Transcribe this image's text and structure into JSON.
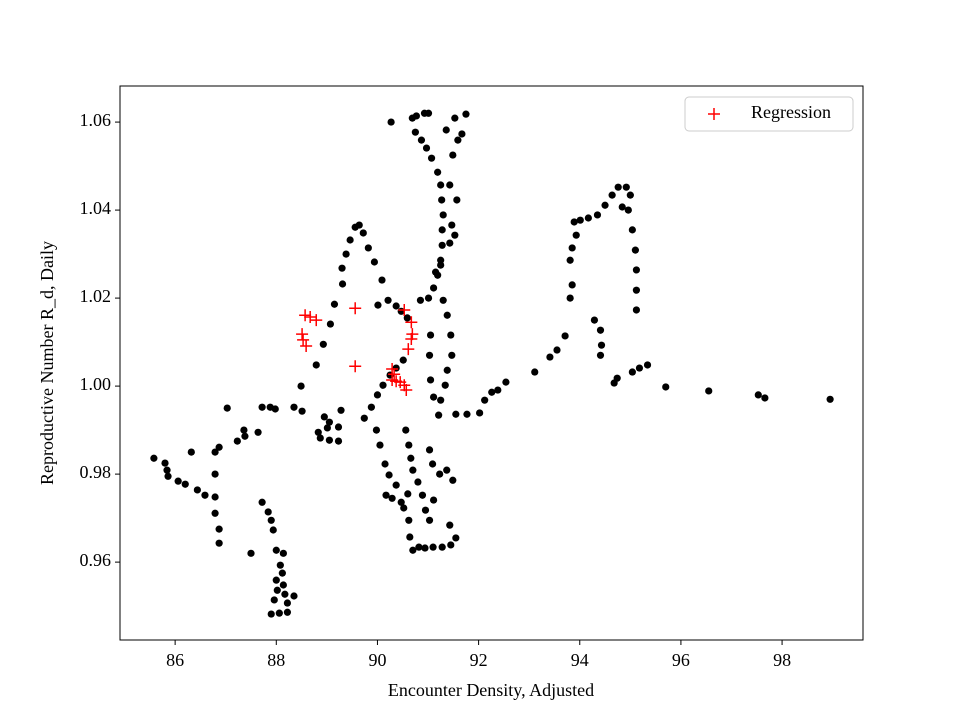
{
  "chart_data": {
    "type": "scatter",
    "xlabel": "Encounter Density, Adjusted",
    "ylabel": "Reproductive Number R_d, Daily",
    "xlim": [
      84.91,
      99.6
    ],
    "ylim": [
      0.9423,
      1.0682
    ],
    "xticks": [
      86,
      88,
      90,
      92,
      94,
      96,
      98
    ],
    "yticks": [
      0.96,
      0.98,
      {
        "value": 1,
        "label": "1.00"
      },
      1.02,
      1.04,
      1.06
    ],
    "legend": "upper right",
    "series": [
      {
        "color": "#000000",
        "marker": "o",
        "x": [
          85.58,
          85.8,
          85.84,
          85.86,
          86.06,
          86.2,
          86.32,
          86.44,
          86.59,
          86.79,
          86.79,
          86.79,
          86.87,
          86.87,
          86.79,
          86.87,
          87.03,
          87.23,
          87.36,
          87.38,
          87.64,
          87.72,
          87.88,
          87.98,
          87.5,
          87.72,
          87.84,
          87.9,
          87.94,
          88.0,
          88.14,
          88.08,
          88.12,
          88.0,
          88.14,
          88.02,
          88.17,
          87.96,
          88.22,
          87.9,
          88.06,
          88.22,
          88.35,
          88.35,
          88.51,
          88.49,
          88.79,
          88.95,
          88.93,
          89.01,
          88.83,
          88.87,
          89.05,
          89.23,
          89.23,
          89.28,
          89.05,
          89.15,
          89.07,
          89.31,
          89.3,
          89.38,
          89.46,
          89.56,
          89.64,
          89.72,
          89.82,
          89.94,
          90.09,
          90.01,
          90.21,
          90.37,
          90.47,
          90.59,
          89.74,
          89.88,
          90.0,
          90.11,
          90.25,
          90.37,
          90.51,
          89.98,
          90.05,
          90.15,
          90.23,
          90.17,
          90.29,
          90.37,
          90.47,
          90.52,
          90.6,
          90.62,
          90.64,
          90.7,
          90.82,
          90.94,
          91.1,
          91.28,
          91.45,
          91.55,
          91.43,
          90.56,
          90.62,
          90.66,
          90.7,
          90.8,
          90.89,
          90.95,
          91.03,
          91.11,
          91.03,
          91.09,
          91.23,
          91.37,
          91.49,
          90.27,
          90.69,
          90.77,
          90.93,
          91.01,
          90.75,
          90.87,
          90.97,
          91.07,
          91.19,
          91.25,
          91.27,
          91.3,
          91.28,
          91.28,
          91.25,
          91.19,
          91.11,
          91.01,
          90.85,
          91.3,
          91.38,
          91.45,
          91.47,
          91.38,
          91.34,
          91.25,
          91.21,
          91.55,
          91.11,
          91.05,
          91.03,
          91.05,
          91.43,
          91.53,
          91.47,
          91.57,
          91.43,
          91.49,
          91.59,
          91.67,
          91.53,
          91.75,
          91.36,
          91.25,
          91.15,
          91.77,
          92.02,
          92.12,
          92.26,
          92.38,
          92.54,
          93.11,
          93.41,
          93.55,
          93.71,
          93.81,
          93.85,
          93.81,
          93.85,
          93.93,
          93.89,
          94.01,
          94.17,
          94.35,
          94.5,
          94.64,
          94.76,
          94.92,
          95.0,
          94.96,
          94.84,
          95.04,
          95.1,
          95.12,
          95.12,
          95.12,
          94.29,
          94.41,
          94.43,
          94.41,
          94.68,
          94.74,
          95.04,
          95.18,
          95.34,
          95.7,
          96.55,
          97.53,
          97.66,
          98.95
        ],
        "values": [
          0.9836,
          0.9825,
          0.9809,
          0.9795,
          0.9784,
          0.9777,
          0.985,
          0.9764,
          0.9752,
          0.98,
          0.9748,
          0.9711,
          0.9675,
          0.9643,
          0.985,
          0.9861,
          0.995,
          0.9875,
          0.99,
          0.9886,
          0.9895,
          0.9952,
          0.9952,
          0.9948,
          0.962,
          0.9736,
          0.9714,
          0.9695,
          0.9673,
          0.9627,
          0.962,
          0.9593,
          0.9575,
          0.9559,
          0.9548,
          0.9536,
          0.9527,
          0.9514,
          0.9507,
          0.9482,
          0.9484,
          0.9486,
          0.9523,
          0.9952,
          0.9943,
          1.0,
          1.0048,
          0.993,
          1.0095,
          0.9905,
          0.9895,
          0.9882,
          0.9877,
          0.9875,
          0.9907,
          0.9945,
          0.9918,
          1.0186,
          1.0141,
          1.0232,
          1.0268,
          1.03,
          1.0332,
          1.0361,
          1.0366,
          1.0348,
          1.0314,
          1.0282,
          1.0241,
          1.0184,
          1.0195,
          1.0182,
          1.017,
          1.0155,
          0.9927,
          0.9952,
          0.998,
          1.0002,
          1.0025,
          1.0041,
          1.0059,
          0.99,
          0.9866,
          0.9823,
          0.9798,
          0.9752,
          0.9745,
          0.9775,
          0.9736,
          0.9723,
          0.9755,
          0.9695,
          0.9657,
          0.9627,
          0.9634,
          0.9632,
          0.9634,
          0.9634,
          0.9639,
          0.9655,
          0.9684,
          0.99,
          0.9866,
          0.9836,
          0.9809,
          0.9782,
          0.9752,
          0.9718,
          0.9695,
          0.9741,
          0.9855,
          0.9823,
          0.98,
          0.9809,
          0.9786,
          1.06,
          1.0609,
          1.0614,
          1.062,
          1.062,
          1.0577,
          1.0559,
          1.0541,
          1.0518,
          1.0486,
          1.0457,
          1.0423,
          1.0389,
          1.0355,
          1.032,
          1.0286,
          1.0252,
          1.0223,
          1.02,
          1.0195,
          1.0195,
          1.0161,
          1.0116,
          1.007,
          1.0036,
          1.0002,
          0.9968,
          0.9934,
          0.9936,
          0.9975,
          1.0014,
          1.007,
          1.0116,
          1.0325,
          1.0343,
          1.0366,
          1.0423,
          1.0457,
          1.0525,
          1.0559,
          1.0573,
          1.0609,
          1.0618,
          1.0582,
          1.0275,
          1.0259,
          0.9936,
          0.9939,
          0.9968,
          0.9986,
          0.9991,
          1.0009,
          1.0032,
          1.0066,
          1.0082,
          1.0114,
          1.02,
          1.023,
          1.0286,
          1.0314,
          1.0343,
          1.0373,
          1.0377,
          1.0382,
          1.0389,
          1.0411,
          1.0434,
          1.0452,
          1.0452,
          1.0434,
          1.04,
          1.0407,
          1.0355,
          1.0309,
          1.0264,
          1.0218,
          1.0173,
          1.015,
          1.0127,
          1.0093,
          1.007,
          1.0007,
          1.0018,
          1.0032,
          1.0041,
          1.0048,
          0.9998,
          0.9989,
          0.998,
          0.9973,
          0.997
        ]
      },
      {
        "name": "Regression",
        "color": "#ff0000",
        "marker": "+",
        "x": [
          88.51,
          88.53,
          88.59,
          88.57,
          88.67,
          88.79,
          89.56,
          89.56,
          90.53,
          90.67,
          90.69,
          90.67,
          90.61,
          90.29,
          90.33,
          90.29,
          90.37,
          90.45,
          90.53,
          90.57
        ],
        "values": [
          1.0118,
          1.0105,
          1.0091,
          1.0161,
          1.0157,
          1.015,
          1.0177,
          1.0045,
          1.0173,
          1.0145,
          1.0118,
          1.0107,
          1.0084,
          1.0039,
          1.0027,
          1.0014,
          1.0011,
          1.0009,
          1.0002,
          0.9991
        ]
      }
    ]
  }
}
